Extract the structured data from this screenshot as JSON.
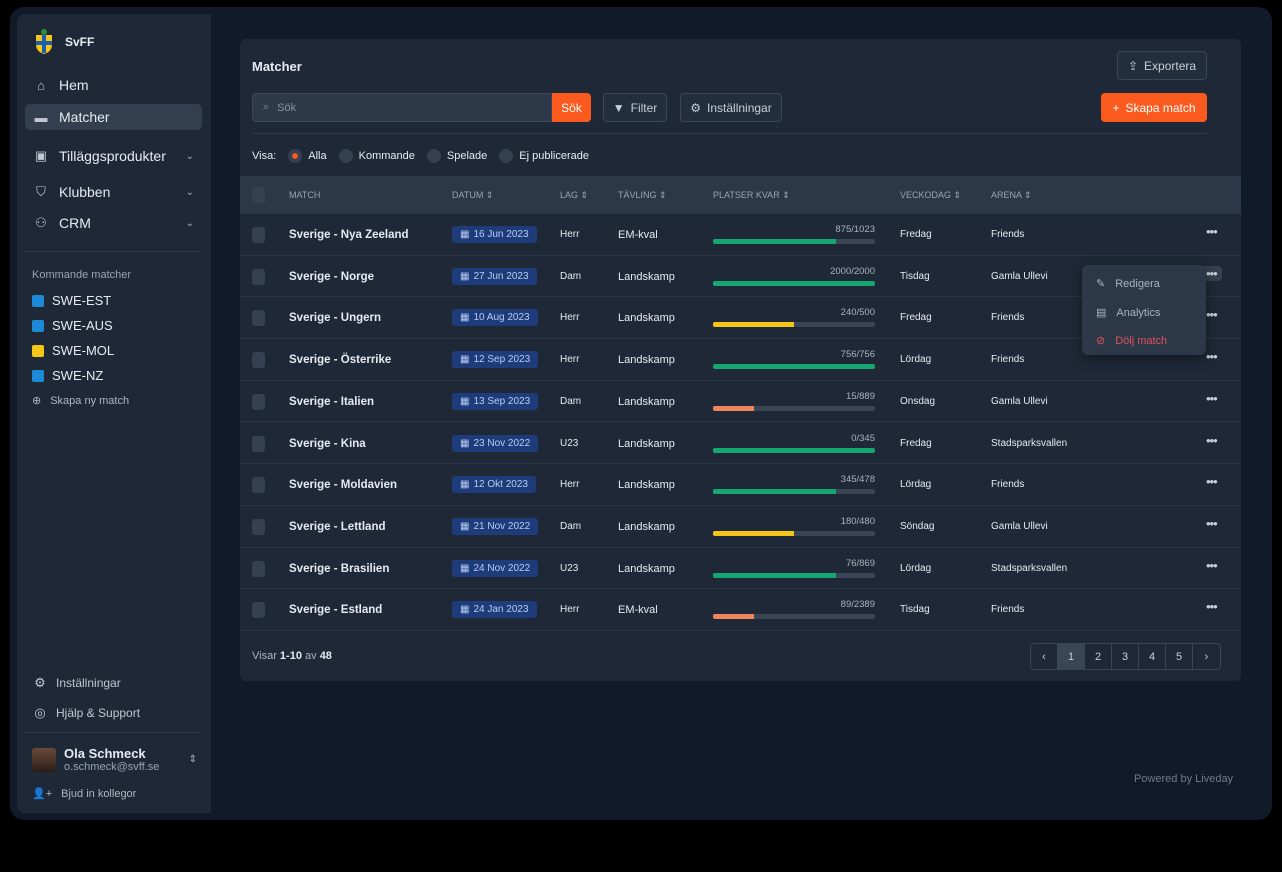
{
  "brand": "SvFF",
  "nav": [
    {
      "label": "Hem",
      "icon": "home-icon"
    },
    {
      "label": "Matcher",
      "icon": "ticket-icon",
      "active": true
    },
    {
      "label": "Tilläggsprodukter",
      "icon": "bag-icon"
    },
    {
      "label": "Klubben",
      "icon": "shield-icon"
    },
    {
      "label": "CRM",
      "icon": "users-icon"
    }
  ],
  "upcoming": {
    "title": "Kommande matcher",
    "items": [
      {
        "label": "SWE-EST",
        "color": "#1c8ad6"
      },
      {
        "label": "SWE-AUS",
        "color": "#1c8ad6"
      },
      {
        "label": "SWE-MOL",
        "color": "#f5c518"
      },
      {
        "label": "SWE-NZ",
        "color": "#1c8ad6"
      }
    ],
    "create": "Skapa ny match"
  },
  "bottom": {
    "settings": "Inställningar",
    "help": "Hjälp & Support",
    "user_name": "Ola Schmeck",
    "user_email": "o.schmeck@svff.se",
    "invite": "Bjud in kollegor"
  },
  "main": {
    "title": "Matcher",
    "export": "Exportera",
    "search_placeholder": "Sök",
    "search_button": "Sök",
    "filter": "Filter",
    "settings": "Inställningar",
    "create": "Skapa match",
    "visa_label": "Visa:",
    "filters": [
      {
        "label": "Alla",
        "selected": true
      },
      {
        "label": "Kommande"
      },
      {
        "label": "Spelade"
      },
      {
        "label": "Ej publicerade"
      }
    ]
  },
  "columns": [
    "MATCH",
    "DATUM ⇕",
    "LAG ⇕",
    "TÄVLING ⇕",
    "PLATSER KVAR ⇕",
    "VECKODAG ⇕",
    "ARENA ⇕"
  ],
  "rows": [
    {
      "match": "Sverige - Nya Zeeland",
      "date": "16 Jun 2023",
      "team": "Herr",
      "comp": "EM-kval",
      "seats": "875/1023",
      "fill": 0.76,
      "color": "#16a671",
      "day": "Fredag",
      "arena": "Friends"
    },
    {
      "match": "Sverige - Norge",
      "date": "27 Jun 2023",
      "team": "Dam",
      "comp": "Landskamp",
      "seats": "2000/2000",
      "fill": 1,
      "color": "#16a671",
      "day": "Tisdag",
      "arena": "Gamla Ullevi"
    },
    {
      "match": "Sverige - Ungern",
      "date": "10 Aug 2023",
      "team": "Herr",
      "comp": "Landskamp",
      "seats": "240/500",
      "fill": 0.5,
      "color": "#f5c518",
      "day": "Fredag",
      "arena": "Friends"
    },
    {
      "match": "Sverige - Österrike",
      "date": "12 Sep 2023",
      "team": "Herr",
      "comp": "Landskamp",
      "seats": "756/756",
      "fill": 1,
      "color": "#16a671",
      "day": "Lördag",
      "arena": "Friends"
    },
    {
      "match": "Sverige - Italien",
      "date": "13 Sep 2023",
      "team": "Dam",
      "comp": "Landskamp",
      "seats": "15/889",
      "fill": 0.25,
      "color": "#f0845a",
      "day": "Onsdag",
      "arena": "Gamla Ullevi"
    },
    {
      "match": "Sverige - Kina",
      "date": "23 Nov 2022",
      "team": "U23",
      "comp": "Landskamp",
      "seats": "0/345",
      "fill": 1,
      "color": "#16a671",
      "day": "Fredag",
      "arena": "Stadsparksvallen"
    },
    {
      "match": "Sverige - Moldavien",
      "date": "12 Okt 2023",
      "team": "Herr",
      "comp": "Landskamp",
      "seats": "345/478",
      "fill": 0.76,
      "color": "#16a671",
      "day": "Lördag",
      "arena": "Friends"
    },
    {
      "match": "Sverige - Lettland",
      "date": "21 Nov 2022",
      "team": "Dam",
      "comp": "Landskamp",
      "seats": "180/480",
      "fill": 0.5,
      "color": "#f5c518",
      "day": "Söndag",
      "arena": "Gamla Ullevi"
    },
    {
      "match": "Sverige - Brasilien",
      "date": "24 Nov 2022",
      "team": "U23",
      "comp": "Landskamp",
      "seats": "76/869",
      "fill": 0.76,
      "color": "#16a671",
      "day": "Lördag",
      "arena": "Stadsparksvallen"
    },
    {
      "match": "Sverige - Estland",
      "date": "24 Jan 2023",
      "team": "Herr",
      "comp": "EM-kval",
      "seats": "89/2389",
      "fill": 0.25,
      "color": "#f0845a",
      "day": "Tisdag",
      "arena": "Friends"
    }
  ],
  "menu": {
    "edit": "Redigera",
    "analytics": "Analytics",
    "hide": "Dölj match"
  },
  "footer": {
    "prefix": "Visar ",
    "range": "1-10",
    "mid": " av ",
    "total": "48"
  },
  "pagination": {
    "pages": [
      "1",
      "2",
      "3",
      "4",
      "5"
    ],
    "current": "1"
  },
  "powered": "Powered by Liveday"
}
